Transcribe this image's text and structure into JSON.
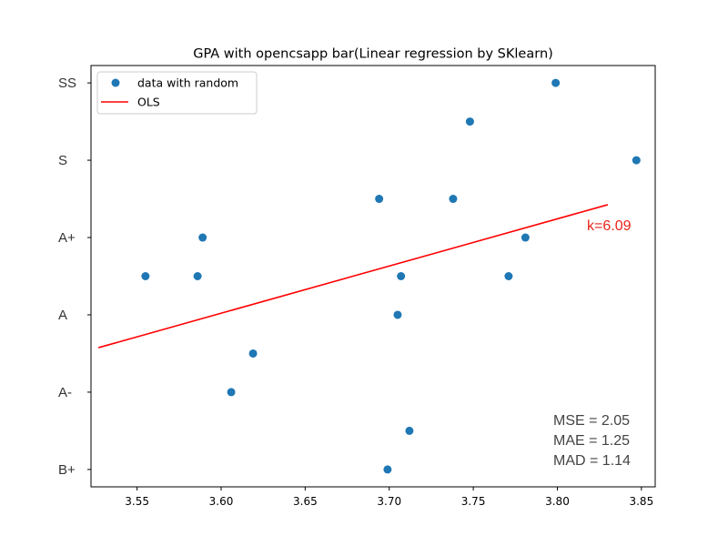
{
  "chart_data": {
    "type": "scatter",
    "title": "GPA with opencsapp bar(Linear regression by SKlearn)",
    "xlabel": "",
    "ylabel": "",
    "xlim": [
      3.5226,
      3.8582
    ],
    "ylim": [
      -0.45,
      10.45
    ],
    "xticks": [
      3.55,
      3.6,
      3.65,
      3.7,
      3.75,
      3.8,
      3.85
    ],
    "xtick_labels": [
      "3.55",
      "3.60",
      "3.65",
      "3.70",
      "3.75",
      "3.80",
      "3.85"
    ],
    "yticks": [
      0,
      2,
      4,
      6,
      8,
      10
    ],
    "ytick_labels": [
      "B+",
      "A-",
      "A  ",
      "A+",
      "S  ",
      "SS"
    ],
    "series": [
      {
        "name": "data with random",
        "kind": "scatter",
        "color": "#1f77b4",
        "x": [
          3.555,
          3.586,
          3.589,
          3.606,
          3.619,
          3.694,
          3.699,
          3.705,
          3.707,
          3.712,
          3.738,
          3.748,
          3.771,
          3.781,
          3.799,
          3.847
        ],
        "y": [
          5,
          5,
          6,
          2,
          3,
          7,
          0,
          4,
          5,
          1,
          7,
          9,
          5,
          6,
          10,
          8
        ]
      },
      {
        "name": "OLS",
        "kind": "line",
        "color": "#ff0000",
        "x": [
          3.527,
          3.83
        ],
        "y": [
          3.15,
          6.85
        ]
      }
    ],
    "legend": {
      "placement": "top-left"
    },
    "grid": false,
    "annotations": {
      "slope": "k=6.09",
      "stats": [
        "MSE = 2.05",
        "MAE = 1.25",
        "MAD = 1.14"
      ]
    }
  }
}
